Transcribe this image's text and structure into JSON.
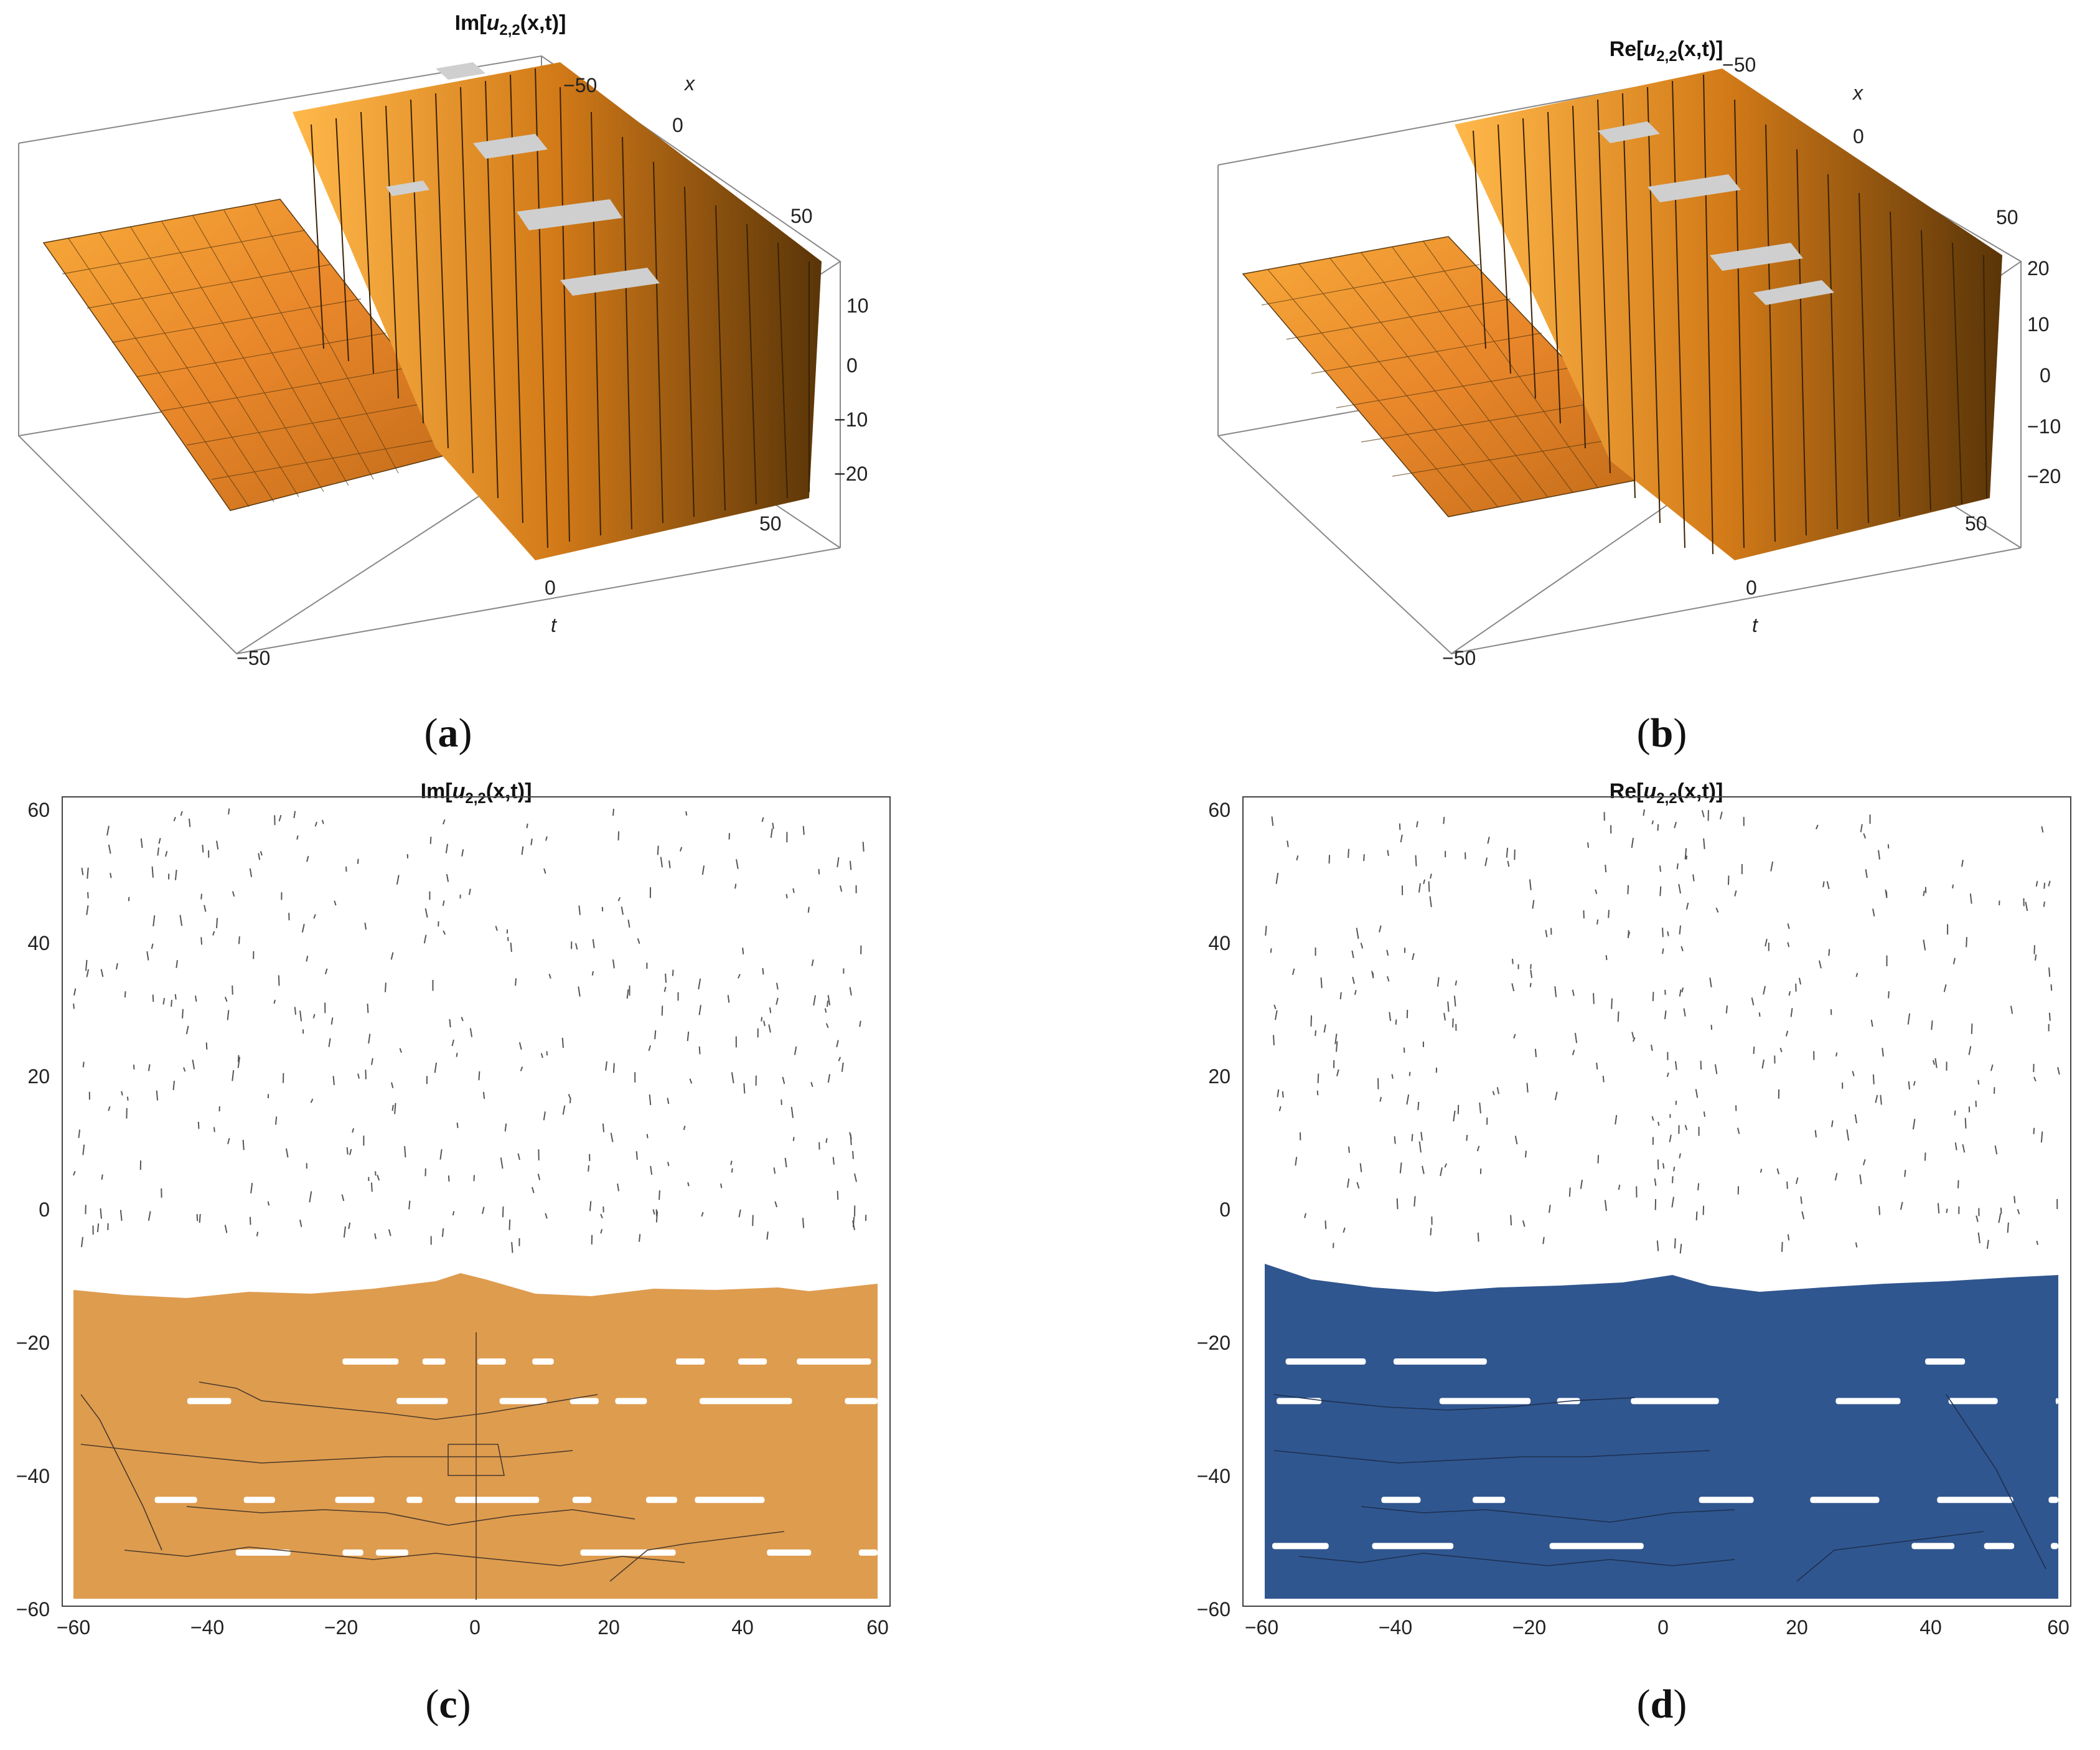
{
  "figure": {
    "captions": [
      "(a)",
      "(b)",
      "(c)",
      "(d)"
    ],
    "caption_letters": [
      "a",
      "b",
      "c",
      "d"
    ]
  },
  "colors": {
    "surface_orange": "#E8962A",
    "surface_dark": "#7A4A10",
    "contour_orange": "#DE9C4F",
    "contour_blue": "#30568F",
    "line": "#222222",
    "box": "#888888"
  },
  "chart_data": [
    {
      "type": "surface3d",
      "title_prefix": "Im[",
      "title_var": "u",
      "title_sub": "2,2",
      "title_suffix": "(x,t)]",
      "x_label": "x",
      "t_label": "t",
      "x_ticks": [
        "−50",
        "0",
        "50"
      ],
      "t_ticks": [
        "−50",
        "0",
        "50"
      ],
      "z_ticks": [
        "10",
        "0",
        "−10",
        "−20"
      ],
      "xlim": [
        -60,
        60
      ],
      "tlim": [
        -60,
        60
      ],
      "zlim": [
        -20,
        20
      ]
    },
    {
      "type": "surface3d",
      "title_prefix": "Re[",
      "title_var": "u",
      "title_sub": "2,2",
      "title_suffix": "(x,t)]",
      "x_label": "x",
      "t_label": "t",
      "x_ticks": [
        "−50",
        "0",
        "50"
      ],
      "t_ticks": [
        "−50",
        "0",
        "50"
      ],
      "z_ticks": [
        "20",
        "10",
        "0",
        "−10",
        "−20"
      ],
      "xlim": [
        -60,
        60
      ],
      "tlim": [
        -60,
        60
      ],
      "zlim": [
        -20,
        20
      ]
    },
    {
      "type": "contour",
      "title_prefix": "Im[",
      "title_var": "u",
      "title_sub": "2,2",
      "title_suffix": "(x,t)]",
      "x_ticks": [
        "−60",
        "−40",
        "−20",
        "0",
        "20",
        "40",
        "60"
      ],
      "y_ticks": [
        "60",
        "40",
        "20",
        "0",
        "−20",
        "−40",
        "−60"
      ],
      "xlim": [
        -60,
        60
      ],
      "ylim": [
        -60,
        60
      ],
      "filled_region_top": -12,
      "gap_rows": [
        -24,
        -30,
        -45,
        -53
      ]
    },
    {
      "type": "contour",
      "title_prefix": "Re[",
      "title_var": "u",
      "title_sub": "2,2",
      "title_suffix": "(x,t)]",
      "x_ticks": [
        "−60",
        "−40",
        "−20",
        "0",
        "20",
        "40",
        "60"
      ],
      "y_ticks": [
        "60",
        "40",
        "20",
        "0",
        "−20",
        "−40",
        "−60"
      ],
      "xlim": [
        -60,
        60
      ],
      "ylim": [
        -60,
        60
      ],
      "filled_region_top": -12,
      "gap_rows": [
        -24,
        -30,
        -45,
        -52
      ]
    }
  ]
}
